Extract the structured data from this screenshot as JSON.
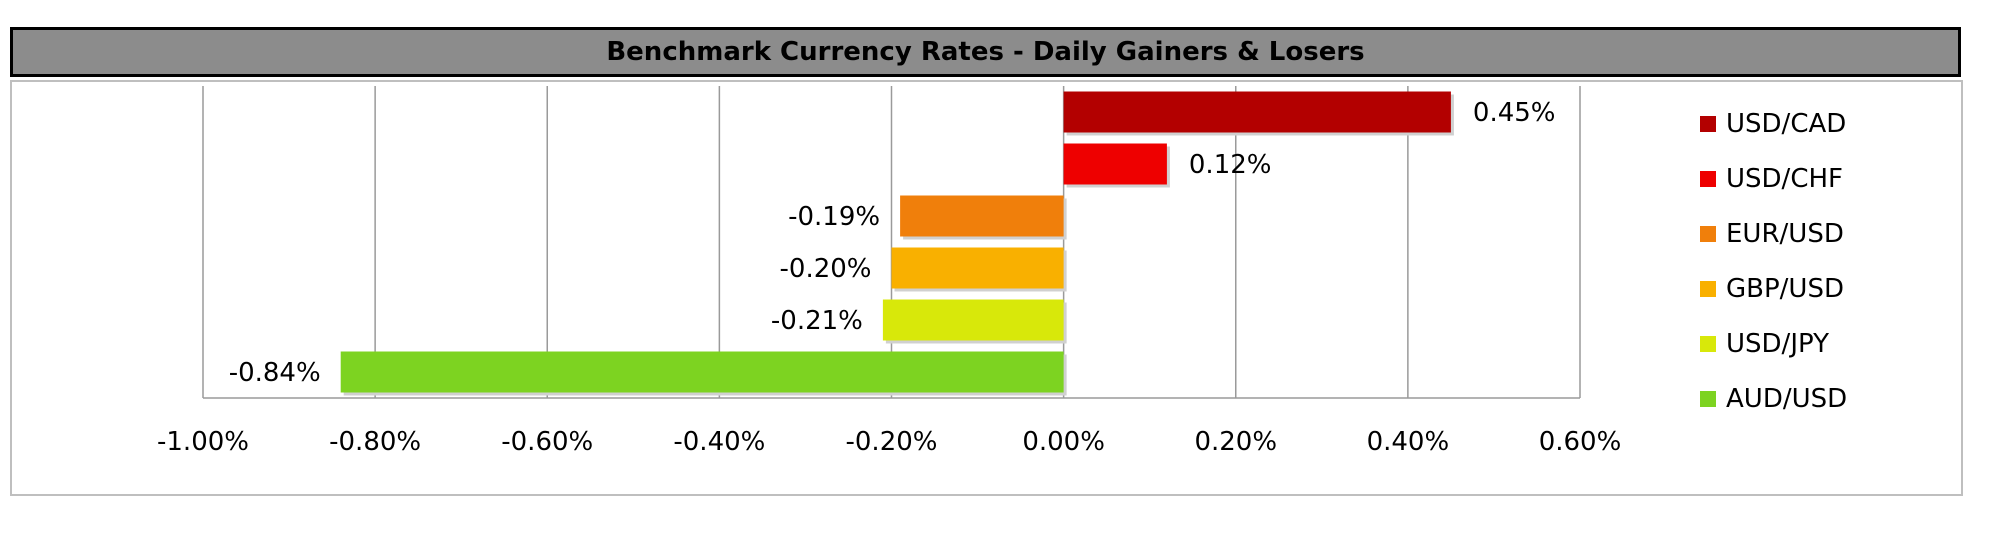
{
  "chart_data": {
    "type": "bar",
    "orientation": "horizontal",
    "title": "Benchmark Currency Rates - Daily Gainers & Losers",
    "categories": [
      "USD/CAD",
      "USD/CHF",
      "EUR/USD",
      "GBP/USD",
      "USD/JPY",
      "AUD/USD"
    ],
    "values": [
      0.45,
      0.12,
      -0.19,
      -0.2,
      -0.21,
      -0.84
    ],
    "data_labels": [
      "0.45%",
      "0.12%",
      "-0.19%",
      "-0.20%",
      "-0.21%",
      "-0.84%"
    ],
    "colors": [
      "#b30000",
      "#ee0000",
      "#f07f0b",
      "#f9b000",
      "#d8e80a",
      "#7dd321"
    ],
    "xlim": [
      -1.0,
      0.6
    ],
    "x_ticks": [
      -1.0,
      -0.8,
      -0.6,
      -0.4,
      -0.2,
      0.0,
      0.2,
      0.4,
      0.6
    ],
    "x_tick_labels": [
      "-1.00%",
      "-0.80%",
      "-0.60%",
      "-0.40%",
      "-0.20%",
      "0.00%",
      "0.20%",
      "0.40%",
      "0.60%"
    ],
    "grid": "vertical",
    "legend_position": "right",
    "legend": [
      "USD/CAD",
      "USD/CHF",
      "EUR/USD",
      "GBP/USD",
      "USD/JPY",
      "AUD/USD"
    ]
  }
}
